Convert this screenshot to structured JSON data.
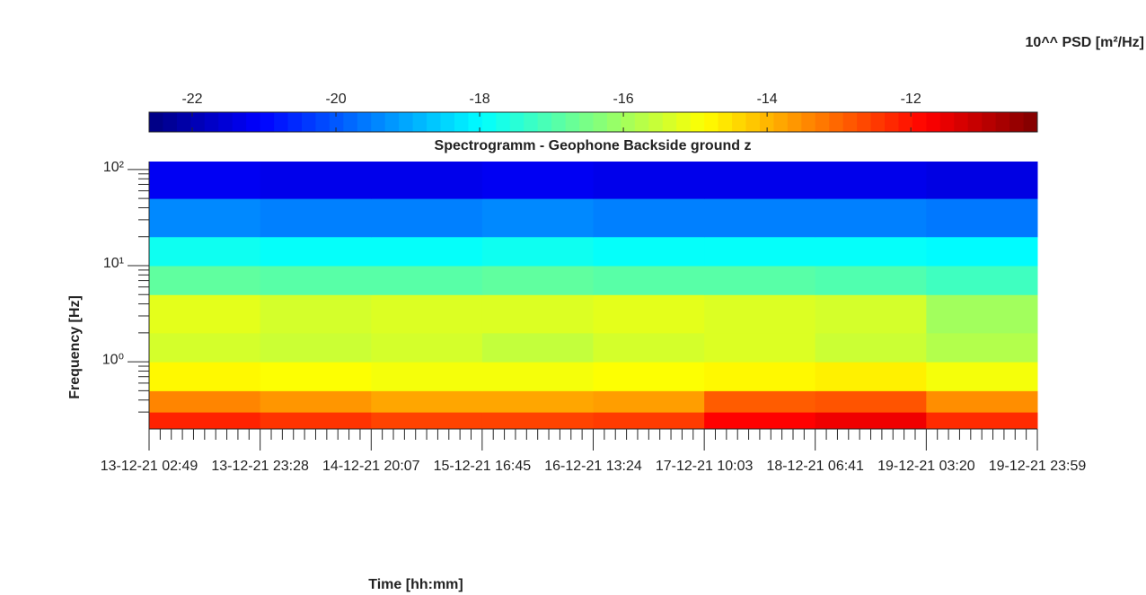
{
  "chart_data": {
    "type": "heatmap",
    "title": "Spectrogramm - Geophone Backside ground z",
    "xlabel": "Time [hh:mm]",
    "ylabel": "Frequency [Hz]",
    "colorbar_label": "10^^ PSD [m²/Hz]",
    "colormap": "jet",
    "yscale": "log",
    "xlim": [
      "2021-12-13T02:49",
      "2021-12-19T23:59"
    ],
    "xticks": [
      {
        "value": "2021-12-13T02:49",
        "label": "13-12-21 02:49"
      },
      {
        "value": "2021-12-13T23:28",
        "label": "13-12-21 23:28"
      },
      {
        "value": "2021-12-14T20:07",
        "label": "14-12-21 20:07"
      },
      {
        "value": "2021-12-15T16:45",
        "label": "15-12-21 16:45"
      },
      {
        "value": "2021-12-16T13:24",
        "label": "16-12-21 13:24"
      },
      {
        "value": "2021-12-17T10:03",
        "label": "17-12-21 10:03"
      },
      {
        "value": "2021-12-18T06:41",
        "label": "18-12-21 06:41"
      },
      {
        "value": "2021-12-19T03:20",
        "label": "19-12-21 03:20"
      },
      {
        "value": "2021-12-19T23:59",
        "label": "19-12-21 23:59"
      }
    ],
    "ylim": [
      0.2,
      121
    ],
    "yticks": [
      {
        "value": 1,
        "label": "10⁰"
      },
      {
        "value": 10,
        "label": "10¹"
      },
      {
        "value": 100,
        "label": "10²"
      }
    ],
    "clim": [
      -22.6,
      -10.24
    ],
    "cticks": [
      -22,
      -20,
      -18,
      -16,
      -14,
      -12
    ],
    "x_edges": [
      "2021-12-13T02:49",
      "2021-12-13T23:28",
      "2021-12-14T20:07",
      "2021-12-15T16:45",
      "2021-12-16T13:24",
      "2021-12-17T10:03",
      "2021-12-18T06:41",
      "2021-12-19T03:20",
      "2021-12-19T23:59"
    ],
    "y_edges": [
      0.2,
      0.3,
      0.5,
      1,
      2,
      5,
      10,
      20,
      50,
      121
    ],
    "z": [
      [
        -12.2,
        -12.4,
        -12.6,
        -12.6,
        -12.5,
        -11.8,
        -11.6,
        -12.3
      ],
      [
        -13.4,
        -13.6,
        -13.8,
        -13.8,
        -13.7,
        -12.9,
        -12.8,
        -13.5
      ],
      [
        -14.8,
        -14.9,
        -15.0,
        -15.0,
        -14.9,
        -14.8,
        -14.7,
        -15.0
      ],
      [
        -15.4,
        -15.5,
        -15.4,
        -15.6,
        -15.4,
        -15.3,
        -15.5,
        -15.8
      ],
      [
        -15.2,
        -15.4,
        -15.3,
        -15.3,
        -15.2,
        -15.3,
        -15.4,
        -16.0
      ],
      [
        -16.8,
        -16.9,
        -16.9,
        -16.8,
        -16.9,
        -16.9,
        -17.0,
        -17.2
      ],
      [
        -17.8,
        -17.9,
        -17.9,
        -17.8,
        -17.9,
        -17.9,
        -17.9,
        -18.0
      ],
      [
        -19.4,
        -19.5,
        -19.5,
        -19.4,
        -19.5,
        -19.5,
        -19.5,
        -19.6
      ],
      [
        -21.2,
        -21.3,
        -21.3,
        -21.2,
        -21.3,
        -21.3,
        -21.3,
        -21.4
      ]
    ]
  }
}
